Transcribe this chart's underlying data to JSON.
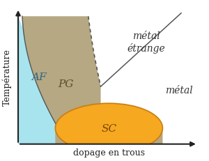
{
  "title": "",
  "xlabel": "dopage en trous",
  "ylabel": "Température",
  "label_AF": "AF",
  "label_PG": "PG",
  "label_SC": "SC",
  "label_metal_etrange": "métal\nétrange",
  "label_metal": "métal",
  "color_AF": "#a8e4ee",
  "color_PG": "#b5a882",
  "color_SC": "#f5a820",
  "color_SC_edge": "#c87d10",
  "color_axes": "#222222",
  "color_dashed": "#555555",
  "color_boundary": "#555555",
  "color_diagonal": "#555555",
  "background": "#ffffff",
  "fontsize_region": 11,
  "fontsize_axis_label": 9
}
